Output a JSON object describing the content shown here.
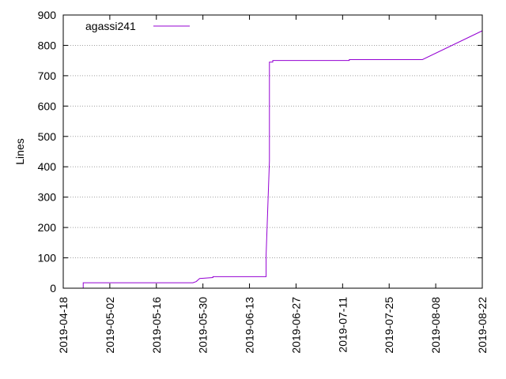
{
  "chart_data": {
    "type": "line",
    "title": "",
    "xlabel": "",
    "ylabel": "Lines",
    "xlim": [
      "2019-04-18",
      "2019-08-22"
    ],
    "ylim": [
      0,
      900
    ],
    "x_ticks": [
      "2019-04-18",
      "2019-05-02",
      "2019-05-16",
      "2019-05-30",
      "2019-06-13",
      "2019-06-27",
      "2019-07-11",
      "2019-07-25",
      "2019-08-08",
      "2019-08-22"
    ],
    "y_ticks": [
      0,
      100,
      200,
      300,
      400,
      500,
      600,
      700,
      800,
      900
    ],
    "grid": true,
    "legend_position": "top-left",
    "series": [
      {
        "name": "agassi241",
        "color": "#9400d3",
        "points": [
          [
            "2019-04-24",
            0
          ],
          [
            "2019-04-24",
            18
          ],
          [
            "2019-05-27",
            18
          ],
          [
            "2019-05-28",
            22
          ],
          [
            "2019-05-29",
            32
          ],
          [
            "2019-06-02",
            35
          ],
          [
            "2019-06-02",
            38
          ],
          [
            "2019-06-18",
            38
          ],
          [
            "2019-06-18",
            110
          ],
          [
            "2019-06-19",
            420
          ],
          [
            "2019-06-19",
            745
          ],
          [
            "2019-06-20",
            745
          ],
          [
            "2019-06-20",
            750
          ],
          [
            "2019-07-13",
            750
          ],
          [
            "2019-07-13",
            753
          ],
          [
            "2019-08-04",
            753
          ],
          [
            "2019-08-22",
            848
          ]
        ]
      }
    ]
  }
}
